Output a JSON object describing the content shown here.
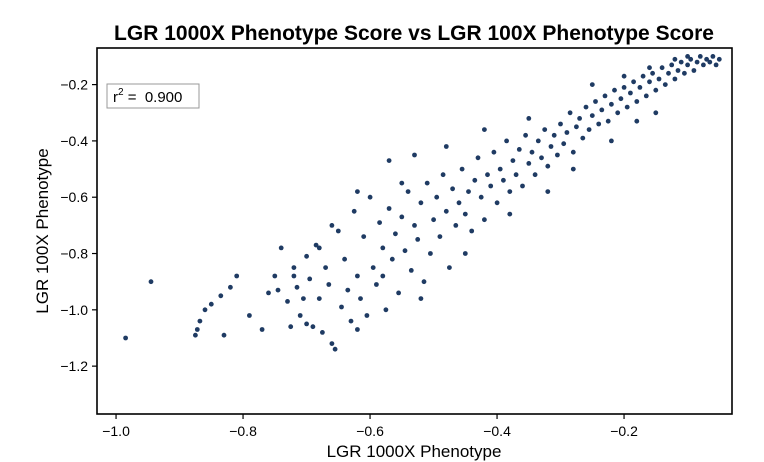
{
  "chart_data": {
    "type": "scatter",
    "title": "LGR 1000X Phenotype Score vs LGR 100X Phenotype Score",
    "xlabel": "LGR 1000X Phenotype",
    "ylabel": "LGR 100X Phenotype",
    "xlim": [
      -1.03,
      -0.03
    ],
    "ylim": [
      -1.37,
      -0.07
    ],
    "xticks": [
      -1.0,
      -0.8,
      -0.6,
      -0.4,
      -0.2
    ],
    "yticks": [
      -1.2,
      -1.0,
      -0.8,
      -0.6,
      -0.4,
      -0.2
    ],
    "xtick_labels": [
      "−1.0",
      "−0.8",
      "−0.6",
      "−0.4",
      "−0.2"
    ],
    "ytick_labels": [
      "−1.2",
      "−1.0",
      "−0.8",
      "−0.6",
      "−0.4",
      "−0.2"
    ],
    "annotation": {
      "r2_label": "r",
      "r2_sup": "2",
      "r2_text": " =  0.900",
      "placement": "top-left"
    },
    "grid": false,
    "marker_color": "#1f3b63",
    "points": [
      [
        -0.985,
        -1.1
      ],
      [
        -0.945,
        -0.9
      ],
      [
        -0.875,
        -1.09
      ],
      [
        -0.872,
        -1.07
      ],
      [
        -0.868,
        -1.04
      ],
      [
        -0.86,
        -1.0
      ],
      [
        -0.85,
        -0.98
      ],
      [
        -0.835,
        -0.95
      ],
      [
        -0.83,
        -1.09
      ],
      [
        -0.82,
        -0.92
      ],
      [
        -0.81,
        -0.88
      ],
      [
        -0.79,
        -1.02
      ],
      [
        -0.77,
        -1.07
      ],
      [
        -0.76,
        -0.94
      ],
      [
        -0.75,
        -0.88
      ],
      [
        -0.745,
        -0.93
      ],
      [
        -0.74,
        -0.78
      ],
      [
        -0.73,
        -0.97
      ],
      [
        -0.725,
        -1.06
      ],
      [
        -0.72,
        -0.85
      ],
      [
        -0.715,
        -0.92
      ],
      [
        -0.71,
        -1.02
      ],
      [
        -0.705,
        -0.96
      ],
      [
        -0.7,
        -0.81
      ],
      [
        -0.695,
        -0.89
      ],
      [
        -0.69,
        -1.06
      ],
      [
        -0.685,
        -0.77
      ],
      [
        -0.68,
        -0.96
      ],
      [
        -0.675,
        -1.08
      ],
      [
        -0.67,
        -0.85
      ],
      [
        -0.665,
        -0.91
      ],
      [
        -0.66,
        -1.12
      ],
      [
        -0.655,
        -1.14
      ],
      [
        -0.65,
        -0.72
      ],
      [
        -0.645,
        -0.99
      ],
      [
        -0.64,
        -0.82
      ],
      [
        -0.635,
        -0.93
      ],
      [
        -0.63,
        -1.04
      ],
      [
        -0.625,
        -0.65
      ],
      [
        -0.62,
        -0.88
      ],
      [
        -0.615,
        -0.96
      ],
      [
        -0.61,
        -0.74
      ],
      [
        -0.605,
        -1.02
      ],
      [
        -0.6,
        -0.6
      ],
      [
        -0.595,
        -0.85
      ],
      [
        -0.59,
        -0.91
      ],
      [
        -0.585,
        -0.69
      ],
      [
        -0.58,
        -0.78
      ],
      [
        -0.575,
        -1.0
      ],
      [
        -0.57,
        -0.64
      ],
      [
        -0.565,
        -0.82
      ],
      [
        -0.56,
        -0.73
      ],
      [
        -0.555,
        -0.94
      ],
      [
        -0.55,
        -0.67
      ],
      [
        -0.545,
        -0.79
      ],
      [
        -0.54,
        -0.58
      ],
      [
        -0.535,
        -0.86
      ],
      [
        -0.53,
        -0.7
      ],
      [
        -0.525,
        -0.75
      ],
      [
        -0.52,
        -0.62
      ],
      [
        -0.515,
        -0.9
      ],
      [
        -0.51,
        -0.55
      ],
      [
        -0.505,
        -0.8
      ],
      [
        -0.5,
        -0.68
      ],
      [
        -0.495,
        -0.6
      ],
      [
        -0.49,
        -0.74
      ],
      [
        -0.485,
        -0.52
      ],
      [
        -0.48,
        -0.65
      ],
      [
        -0.475,
        -0.85
      ],
      [
        -0.47,
        -0.57
      ],
      [
        -0.465,
        -0.7
      ],
      [
        -0.46,
        -0.62
      ],
      [
        -0.455,
        -0.5
      ],
      [
        -0.45,
        -0.66
      ],
      [
        -0.445,
        -0.58
      ],
      [
        -0.44,
        -0.72
      ],
      [
        -0.435,
        -0.54
      ],
      [
        -0.43,
        -0.46
      ],
      [
        -0.425,
        -0.6
      ],
      [
        -0.42,
        -0.68
      ],
      [
        -0.415,
        -0.52
      ],
      [
        -0.41,
        -0.56
      ],
      [
        -0.405,
        -0.44
      ],
      [
        -0.4,
        -0.62
      ],
      [
        -0.395,
        -0.5
      ],
      [
        -0.39,
        -0.54
      ],
      [
        -0.385,
        -0.4
      ],
      [
        -0.38,
        -0.58
      ],
      [
        -0.375,
        -0.47
      ],
      [
        -0.37,
        -0.52
      ],
      [
        -0.365,
        -0.43
      ],
      [
        -0.36,
        -0.56
      ],
      [
        -0.355,
        -0.38
      ],
      [
        -0.35,
        -0.48
      ],
      [
        -0.345,
        -0.44
      ],
      [
        -0.34,
        -0.52
      ],
      [
        -0.335,
        -0.4
      ],
      [
        -0.33,
        -0.46
      ],
      [
        -0.325,
        -0.36
      ],
      [
        -0.32,
        -0.49
      ],
      [
        -0.315,
        -0.42
      ],
      [
        -0.31,
        -0.38
      ],
      [
        -0.305,
        -0.45
      ],
      [
        -0.3,
        -0.34
      ],
      [
        -0.295,
        -0.41
      ],
      [
        -0.29,
        -0.37
      ],
      [
        -0.285,
        -0.3
      ],
      [
        -0.28,
        -0.44
      ],
      [
        -0.275,
        -0.35
      ],
      [
        -0.27,
        -0.32
      ],
      [
        -0.265,
        -0.39
      ],
      [
        -0.26,
        -0.28
      ],
      [
        -0.255,
        -0.36
      ],
      [
        -0.25,
        -0.31
      ],
      [
        -0.245,
        -0.26
      ],
      [
        -0.24,
        -0.34
      ],
      [
        -0.235,
        -0.29
      ],
      [
        -0.23,
        -0.24
      ],
      [
        -0.225,
        -0.33
      ],
      [
        -0.22,
        -0.27
      ],
      [
        -0.215,
        -0.22
      ],
      [
        -0.21,
        -0.3
      ],
      [
        -0.205,
        -0.25
      ],
      [
        -0.2,
        -0.21
      ],
      [
        -0.195,
        -0.28
      ],
      [
        -0.19,
        -0.23
      ],
      [
        -0.185,
        -0.19
      ],
      [
        -0.18,
        -0.26
      ],
      [
        -0.175,
        -0.21
      ],
      [
        -0.17,
        -0.17
      ],
      [
        -0.165,
        -0.24
      ],
      [
        -0.16,
        -0.19
      ],
      [
        -0.155,
        -0.16
      ],
      [
        -0.15,
        -0.22
      ],
      [
        -0.145,
        -0.18
      ],
      [
        -0.14,
        -0.14
      ],
      [
        -0.135,
        -0.2
      ],
      [
        -0.13,
        -0.16
      ],
      [
        -0.125,
        -0.13
      ],
      [
        -0.12,
        -0.18
      ],
      [
        -0.115,
        -0.15
      ],
      [
        -0.11,
        -0.12
      ],
      [
        -0.105,
        -0.16
      ],
      [
        -0.1,
        -0.13
      ],
      [
        -0.095,
        -0.11
      ],
      [
        -0.09,
        -0.15
      ],
      [
        -0.085,
        -0.12
      ],
      [
        -0.08,
        -0.1
      ],
      [
        -0.075,
        -0.13
      ],
      [
        -0.07,
        -0.11
      ],
      [
        -0.065,
        -0.12
      ],
      [
        -0.06,
        -0.1
      ],
      [
        -0.055,
        -0.13
      ],
      [
        -0.05,
        -0.11
      ],
      [
        -0.32,
        -0.58
      ],
      [
        -0.45,
        -0.8
      ],
      [
        -0.52,
        -0.96
      ],
      [
        -0.58,
        -0.88
      ],
      [
        -0.62,
        -1.07
      ],
      [
        -0.7,
        -1.05
      ],
      [
        -0.38,
        -0.66
      ],
      [
        -0.28,
        -0.5
      ],
      [
        -0.22,
        -0.4
      ],
      [
        -0.18,
        -0.33
      ],
      [
        -0.15,
        -0.3
      ],
      [
        -0.57,
        -0.47
      ],
      [
        -0.53,
        -0.45
      ],
      [
        -0.48,
        -0.42
      ],
      [
        -0.42,
        -0.36
      ],
      [
        -0.62,
        -0.58
      ],
      [
        -0.66,
        -0.7
      ],
      [
        -0.68,
        -0.78
      ],
      [
        -0.72,
        -0.88
      ],
      [
        -0.55,
        -0.55
      ],
      [
        -0.35,
        -0.32
      ],
      [
        -0.25,
        -0.2
      ],
      [
        -0.2,
        -0.17
      ],
      [
        -0.16,
        -0.14
      ],
      [
        -0.12,
        -0.11
      ],
      [
        -0.1,
        -0.1
      ]
    ]
  }
}
